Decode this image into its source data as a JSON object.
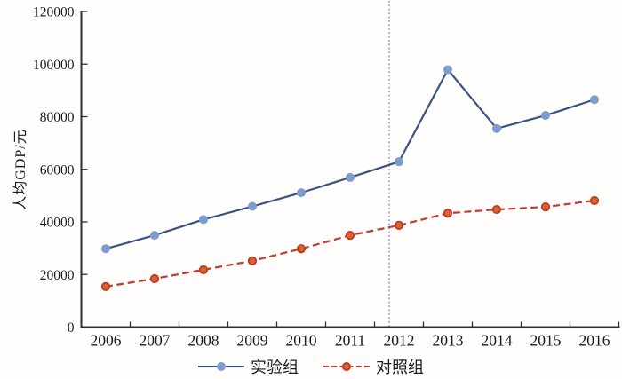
{
  "chart_data": {
    "type": "line",
    "title": "",
    "xlabel": "",
    "ylabel": "人均GDP/元",
    "x": [
      2006,
      2007,
      2008,
      2009,
      2010,
      2011,
      2012,
      2013,
      2014,
      2015,
      2016
    ],
    "series": [
      {
        "name": "实验组",
        "style": "solid",
        "line_color": "#3B5284",
        "marker_color": "#7C9BCE",
        "marker_ring_color": "#7C9BCE",
        "values": [
          29800,
          34900,
          40900,
          45900,
          51100,
          56900,
          62900,
          97900,
          75500,
          80500,
          86500
        ]
      },
      {
        "name": "对照组",
        "style": "dashed",
        "line_color": "#C23A28",
        "marker_color": "#DB6233",
        "marker_ring_color": "#BE3B24",
        "values": [
          15400,
          18400,
          21800,
          25200,
          29800,
          34900,
          38700,
          43300,
          44700,
          45700,
          48100
        ]
      }
    ],
    "ylim": [
      0,
      120000
    ],
    "yticks": [
      0,
      20000,
      40000,
      60000,
      80000,
      100000,
      120000
    ],
    "grid": false,
    "legend_position": "bottom",
    "vline": {
      "year": 2011.8,
      "color": "#AF7CC9",
      "style": "dotted"
    },
    "axis_color": "#2F2F2F",
    "text_color": "#1a1a1a"
  }
}
